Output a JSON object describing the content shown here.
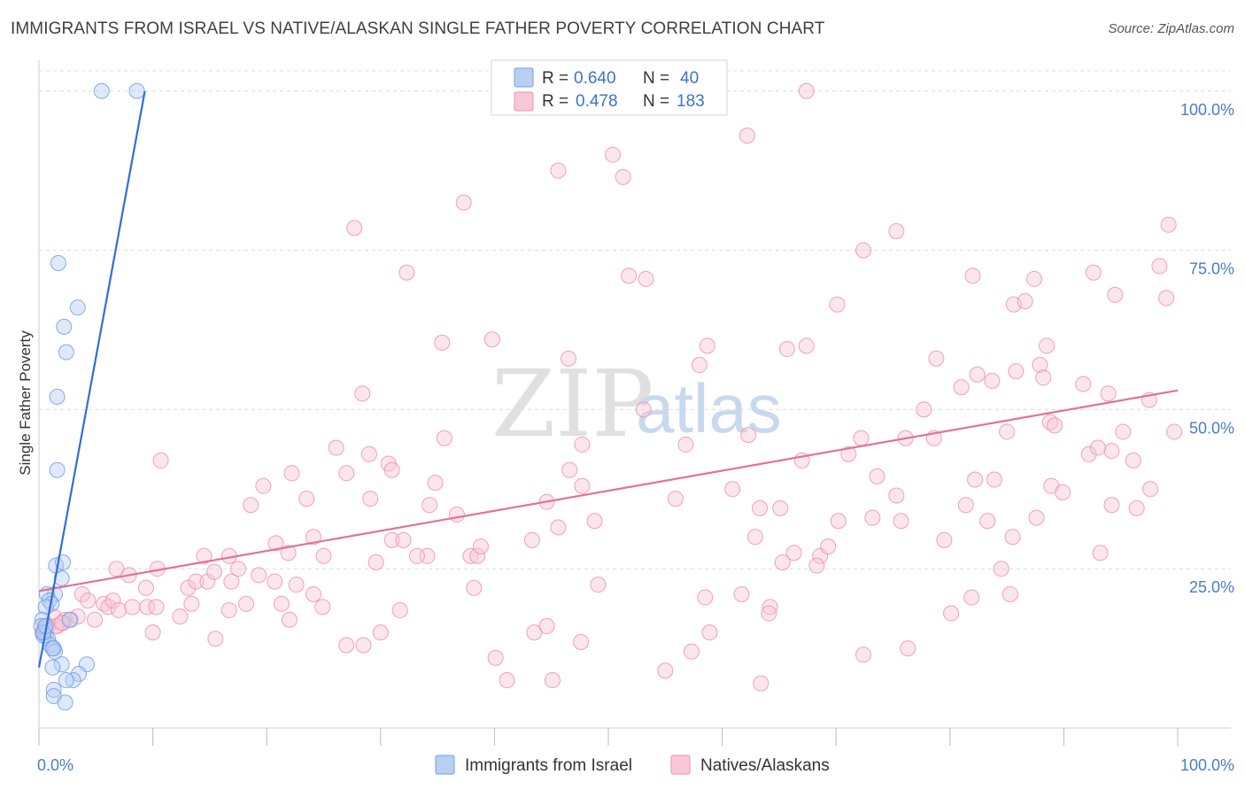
{
  "chart_data": {
    "type": "scatter",
    "title": "IMMIGRANTS FROM ISRAEL VS NATIVE/ALASKAN SINGLE FATHER POVERTY CORRELATION CHART",
    "source": "Source: ZipAtlas.com",
    "xlabel": "",
    "ylabel": "Single Father Poverty",
    "xlim": [
      0,
      100
    ],
    "ylim": [
      0,
      104
    ],
    "x_tick_labels": [
      "0.0%",
      "100.0%"
    ],
    "y_ticks": [
      25,
      50,
      75,
      100
    ],
    "y_tick_labels": [
      "25.0%",
      "50.0%",
      "75.0%",
      "100.0%"
    ],
    "grid": true,
    "watermark": [
      "ZIP",
      "atlas"
    ],
    "legend": {
      "position": "top-center",
      "entries": [
        {
          "r_label": "R =",
          "r_value": "0.640",
          "n_label": "N =",
          "n_value": "40",
          "color": "#9bbdf0"
        },
        {
          "r_label": "R =",
          "r_value": "0.478",
          "n_label": "N =",
          "n_value": "183",
          "color": "#f4a8c2"
        }
      ]
    },
    "series": [
      {
        "name": "Immigrants from Israel",
        "color": "#6f9fe6",
        "fill": "#b7cff3",
        "trend": {
          "x": [
            0,
            9.3
          ],
          "y": [
            9.5,
            100
          ]
        },
        "points": [
          [
            5.5,
            100
          ],
          [
            8.6,
            100
          ],
          [
            1.7,
            73
          ],
          [
            3.4,
            66
          ],
          [
            2.2,
            63
          ],
          [
            2.4,
            59
          ],
          [
            1.6,
            52
          ],
          [
            1.6,
            40.5
          ],
          [
            1.5,
            25.5
          ],
          [
            2.1,
            26
          ],
          [
            2.0,
            23.5
          ],
          [
            1.4,
            21
          ],
          [
            0.7,
            21
          ],
          [
            0.9,
            20
          ],
          [
            1.1,
            19.5
          ],
          [
            0.6,
            19
          ],
          [
            0.3,
            17
          ],
          [
            0.5,
            15.5
          ],
          [
            0.6,
            14.5
          ],
          [
            0.8,
            14
          ],
          [
            0.4,
            14.5
          ],
          [
            0.2,
            16
          ],
          [
            0.4,
            15
          ],
          [
            0.6,
            16
          ],
          [
            2.7,
            17
          ],
          [
            1.0,
            13
          ],
          [
            1.3,
            12.5
          ],
          [
            1.4,
            12
          ],
          [
            1.2,
            12.5
          ],
          [
            2.0,
            10
          ],
          [
            1.2,
            9.5
          ],
          [
            4.2,
            10
          ],
          [
            3.5,
            8.5
          ],
          [
            3.0,
            7.5
          ],
          [
            2.4,
            7.5
          ],
          [
            1.3,
            6
          ],
          [
            1.3,
            5
          ],
          [
            2.3,
            4
          ]
        ]
      },
      {
        "name": "Natives/Alaskans",
        "color": "#ee8fb0",
        "fill": "#f9c8d8",
        "trend": {
          "x": [
            0,
            100
          ],
          "y": [
            21.5,
            53
          ]
        },
        "points": [
          [
            67.4,
            100
          ],
          [
            62.2,
            93
          ],
          [
            50.4,
            90
          ],
          [
            51.3,
            86.5
          ],
          [
            45.6,
            87.5
          ],
          [
            37.3,
            82.5
          ],
          [
            27.7,
            78.5
          ],
          [
            99.2,
            79
          ],
          [
            75.3,
            78
          ],
          [
            72.4,
            75
          ],
          [
            32.3,
            71.5
          ],
          [
            51.8,
            71
          ],
          [
            53.3,
            70.5
          ],
          [
            82.0,
            71
          ],
          [
            87.4,
            70.5
          ],
          [
            92.6,
            71.5
          ],
          [
            98.4,
            72.5
          ],
          [
            99.0,
            67.5
          ],
          [
            70.1,
            66.5
          ],
          [
            85.6,
            66.5
          ],
          [
            86.6,
            67
          ],
          [
            94.5,
            68
          ],
          [
            35.4,
            60.5
          ],
          [
            39.8,
            61
          ],
          [
            58.7,
            60
          ],
          [
            65.7,
            59.5
          ],
          [
            67.4,
            60
          ],
          [
            88.5,
            60
          ],
          [
            46.5,
            58
          ],
          [
            58.0,
            57
          ],
          [
            78.8,
            58
          ],
          [
            81.0,
            53.5
          ],
          [
            82.4,
            55.5
          ],
          [
            83.7,
            54.5
          ],
          [
            85.8,
            56
          ],
          [
            87.9,
            57
          ],
          [
            88.2,
            55
          ],
          [
            91.7,
            54
          ],
          [
            93.9,
            52.5
          ],
          [
            28.4,
            52.5
          ],
          [
            53.1,
            50
          ],
          [
            77.7,
            50
          ],
          [
            97.5,
            51.5
          ],
          [
            35.6,
            45.5
          ],
          [
            47.7,
            44.5
          ],
          [
            56.8,
            44.5
          ],
          [
            62.3,
            46
          ],
          [
            72.2,
            45.5
          ],
          [
            76.1,
            45.5
          ],
          [
            78.6,
            45.5
          ],
          [
            85.0,
            46.5
          ],
          [
            88.8,
            48
          ],
          [
            89.2,
            47.5
          ],
          [
            94.2,
            43.5
          ],
          [
            95.2,
            46.5
          ],
          [
            99.7,
            46.5
          ],
          [
            10.7,
            42
          ],
          [
            26.1,
            44
          ],
          [
            29.0,
            43
          ],
          [
            30.7,
            41.5
          ],
          [
            31.0,
            40.5
          ],
          [
            27.0,
            40
          ],
          [
            22.2,
            40
          ],
          [
            19.7,
            38
          ],
          [
            34.8,
            38.5
          ],
          [
            46.6,
            40.5
          ],
          [
            67.0,
            42
          ],
          [
            71.1,
            43
          ],
          [
            82.2,
            39
          ],
          [
            73.6,
            39.5
          ],
          [
            83.9,
            39
          ],
          [
            88.9,
            38
          ],
          [
            92.2,
            43
          ],
          [
            93.0,
            44
          ],
          [
            96.1,
            42
          ],
          [
            97.6,
            37.5
          ],
          [
            18.6,
            35
          ],
          [
            23.5,
            36
          ],
          [
            29.1,
            36
          ],
          [
            34.3,
            35
          ],
          [
            36.7,
            33.5
          ],
          [
            47.7,
            38
          ],
          [
            44.6,
            35.5
          ],
          [
            55.9,
            36
          ],
          [
            60.9,
            37.5
          ],
          [
            63.3,
            34.5
          ],
          [
            65.1,
            34.5
          ],
          [
            75.3,
            36.5
          ],
          [
            81.4,
            35
          ],
          [
            89.9,
            37
          ],
          [
            94.2,
            35
          ],
          [
            96.4,
            34.5
          ],
          [
            24.1,
            30
          ],
          [
            20.8,
            29
          ],
          [
            21.9,
            27.5
          ],
          [
            25.0,
            27
          ],
          [
            29.6,
            26
          ],
          [
            31.0,
            29.5
          ],
          [
            32.0,
            29.5
          ],
          [
            34.1,
            27
          ],
          [
            37.9,
            27
          ],
          [
            38.5,
            27
          ],
          [
            38.8,
            28.5
          ],
          [
            43.3,
            29.5
          ],
          [
            45.6,
            31.5
          ],
          [
            48.8,
            32.5
          ],
          [
            62.9,
            30
          ],
          [
            65.3,
            26
          ],
          [
            66.3,
            27.5
          ],
          [
            68.6,
            27
          ],
          [
            69.3,
            28.5
          ],
          [
            70.2,
            32.5
          ],
          [
            73.2,
            33
          ],
          [
            75.7,
            32.5
          ],
          [
            79.5,
            29.5
          ],
          [
            83.3,
            32.5
          ],
          [
            85.5,
            30
          ],
          [
            87.6,
            33
          ],
          [
            93.2,
            27.5
          ],
          [
            6.8,
            25
          ],
          [
            10.4,
            25
          ],
          [
            14.5,
            27
          ],
          [
            16.7,
            27
          ],
          [
            7.9,
            24
          ],
          [
            9.4,
            22
          ],
          [
            13.1,
            22
          ],
          [
            13.8,
            23
          ],
          [
            14.8,
            23
          ],
          [
            15.4,
            24.5
          ],
          [
            16.9,
            23
          ],
          [
            17.5,
            25
          ],
          [
            19.3,
            24
          ],
          [
            20.7,
            23
          ],
          [
            22.6,
            22.5
          ],
          [
            24.1,
            21
          ],
          [
            31.7,
            18.5
          ],
          [
            33.2,
            27
          ],
          [
            38.2,
            22
          ],
          [
            49.1,
            22.5
          ],
          [
            58.5,
            20.5
          ],
          [
            61.7,
            21
          ],
          [
            64.2,
            19
          ],
          [
            68.3,
            25.5
          ],
          [
            81.9,
            20.5
          ],
          [
            84.5,
            25
          ],
          [
            85.3,
            21
          ],
          [
            3.8,
            21
          ],
          [
            4.3,
            20
          ],
          [
            5.7,
            19.5
          ],
          [
            6.1,
            19
          ],
          [
            6.5,
            20
          ],
          [
            7.0,
            18.5
          ],
          [
            8.2,
            19
          ],
          [
            9.5,
            19
          ],
          [
            10.3,
            19
          ],
          [
            12.4,
            17.5
          ],
          [
            13.4,
            19.5
          ],
          [
            16.7,
            18.5
          ],
          [
            18.2,
            19.5
          ],
          [
            21.3,
            19.5
          ],
          [
            22.0,
            17
          ],
          [
            24.9,
            19
          ],
          [
            1.3,
            17.5
          ],
          [
            2.3,
            17
          ],
          [
            2.8,
            17
          ],
          [
            3.4,
            17.5
          ],
          [
            4.9,
            17
          ],
          [
            1.6,
            16
          ],
          [
            2.1,
            16.5
          ],
          [
            0.8,
            16
          ],
          [
            1.5,
            16
          ],
          [
            0.5,
            16
          ],
          [
            0.3,
            15
          ],
          [
            2.0,
            16.5
          ],
          [
            10.0,
            15
          ],
          [
            15.5,
            14
          ],
          [
            27.0,
            13
          ],
          [
            28.5,
            13
          ],
          [
            30.0,
            15
          ],
          [
            43.5,
            15
          ],
          [
            44.6,
            16
          ],
          [
            47.6,
            13.5
          ],
          [
            57.3,
            12
          ],
          [
            58.9,
            15
          ],
          [
            64.1,
            18
          ],
          [
            72.4,
            11.5
          ],
          [
            76.3,
            12.5
          ],
          [
            80.1,
            18
          ],
          [
            40.1,
            11
          ],
          [
            41.1,
            7.5
          ],
          [
            45.1,
            7.5
          ],
          [
            55.0,
            9
          ],
          [
            63.4,
            7
          ]
        ]
      }
    ]
  }
}
